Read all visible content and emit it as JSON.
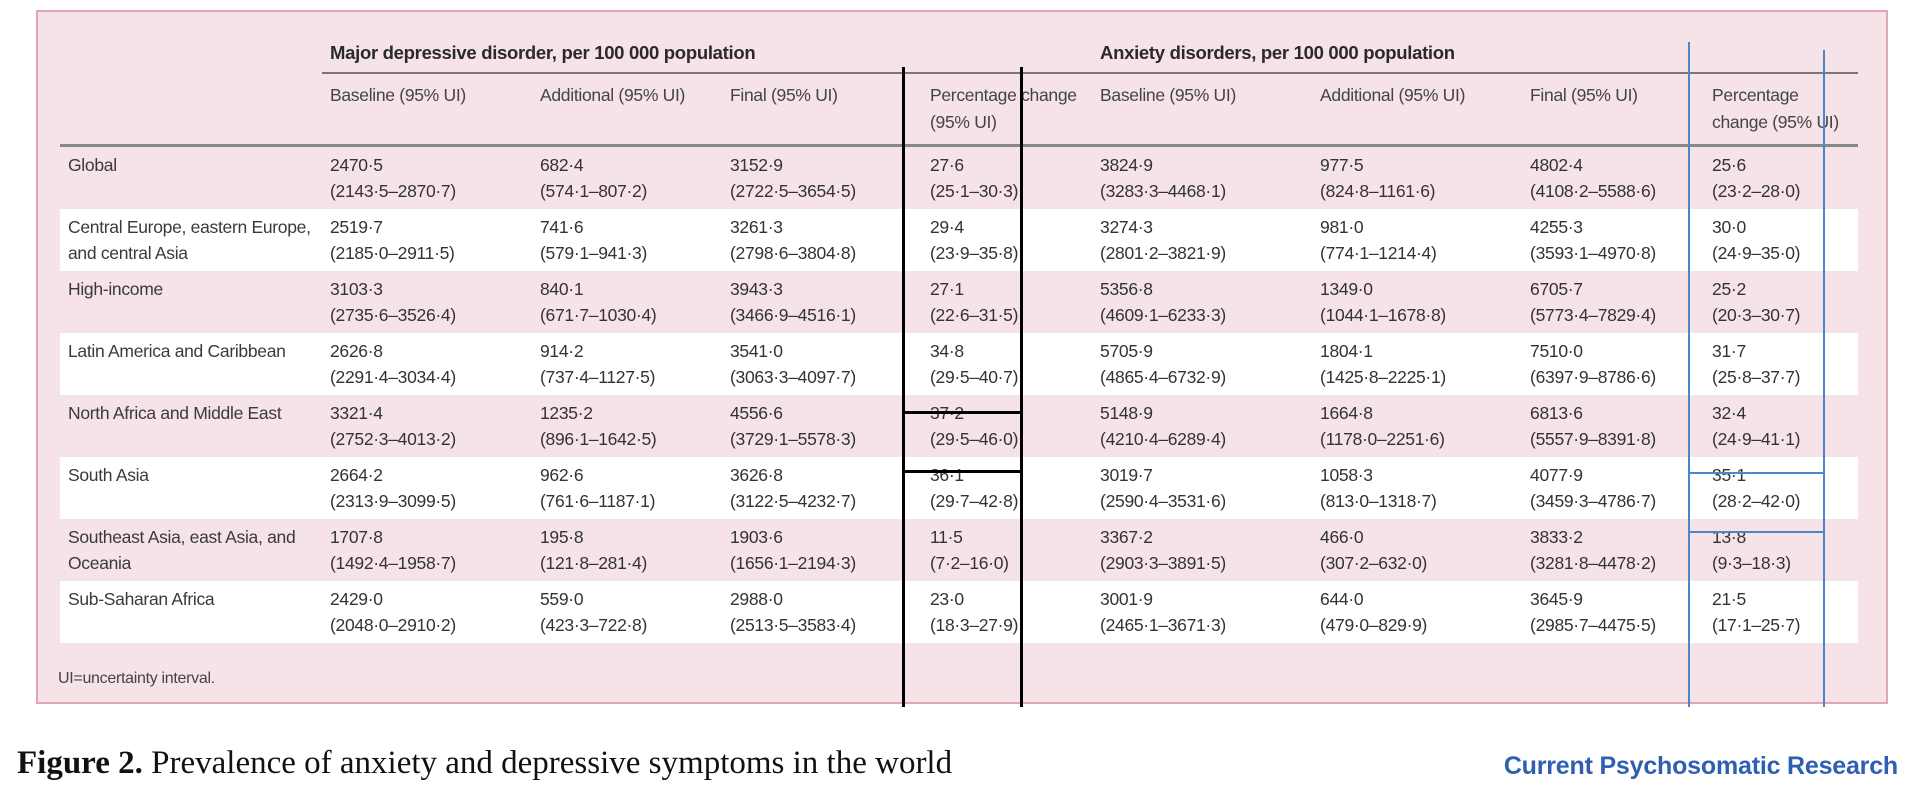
{
  "table": {
    "group_headers": {
      "mdd": "Major depressive disorder, per 100 000 population",
      "anx": "Anxiety disorders, per 100 000 population"
    },
    "sub_headers": {
      "mdd": [
        "Baseline (95% UI)",
        "Additional (95% UI)",
        "Final (95% UI)",
        "Percentage change (95% UI)"
      ],
      "anx": [
        "Baseline (95% UI)",
        "Additional (95% UI)",
        "Final (95% UI)",
        "Percentage change (95% UI)"
      ]
    },
    "rows": [
      {
        "region": "Global",
        "cells": [
          [
            "2470·5",
            "(2143·5–2870·7)"
          ],
          [
            "682·4",
            "(574·1–807·2)"
          ],
          [
            "3152·9",
            "(2722·5–3654·5)"
          ],
          [
            "27·6",
            "(25·1–30·3)"
          ],
          [
            "3824·9",
            "(3283·3–4468·1)"
          ],
          [
            "977·5",
            "(824·8–1161·6)"
          ],
          [
            "4802·4",
            "(4108·2–5588·6)"
          ],
          [
            "25·6",
            "(23·2–28·0)"
          ]
        ]
      },
      {
        "region": "Central Europe, eastern Europe, and central Asia",
        "cells": [
          [
            "2519·7",
            "(2185·0–2911·5)"
          ],
          [
            "741·6",
            "(579·1–941·3)"
          ],
          [
            "3261·3",
            "(2798·6–3804·8)"
          ],
          [
            "29·4",
            "(23·9–35·8)"
          ],
          [
            "3274·3",
            "(2801·2–3821·9)"
          ],
          [
            "981·0",
            "(774·1–1214·4)"
          ],
          [
            "4255·3",
            "(3593·1–4970·8)"
          ],
          [
            "30·0",
            "(24·9–35·0)"
          ]
        ]
      },
      {
        "region": "High-income",
        "cells": [
          [
            "3103·3",
            "(2735·6–3526·4)"
          ],
          [
            "840·1",
            "(671·7–1030·4)"
          ],
          [
            "3943·3",
            "(3466·9–4516·1)"
          ],
          [
            "27·1",
            "(22·6–31·5)"
          ],
          [
            "5356·8",
            "(4609·1–6233·3)"
          ],
          [
            "1349·0",
            "(1044·1–1678·8)"
          ],
          [
            "6705·7",
            "(5773·4–7829·4)"
          ],
          [
            "25·2",
            "(20·3–30·7)"
          ]
        ]
      },
      {
        "region": "Latin America and Caribbean",
        "cells": [
          [
            "2626·8",
            "(2291·4–3034·4)"
          ],
          [
            "914·2",
            "(737·4–1127·5)"
          ],
          [
            "3541·0",
            "(3063·3–4097·7)"
          ],
          [
            "34·8",
            "(29·5–40·7)"
          ],
          [
            "5705·9",
            "(4865·4–6732·9)"
          ],
          [
            "1804·1",
            "(1425·8–2225·1)"
          ],
          [
            "7510·0",
            "(6397·9–8786·6)"
          ],
          [
            "31·7",
            "(25·8–37·7)"
          ]
        ]
      },
      {
        "region": "North Africa and Middle East",
        "cells": [
          [
            "3321·4",
            "(2752·3–4013·2)"
          ],
          [
            "1235·2",
            "(896·1–1642·5)"
          ],
          [
            "4556·6",
            "(3729·1–5578·3)"
          ],
          [
            "37·2",
            "(29·5–46·0)"
          ],
          [
            "5148·9",
            "(4210·4–6289·4)"
          ],
          [
            "1664·8",
            "(1178·0–2251·6)"
          ],
          [
            "6813·6",
            "(5557·9–8391·8)"
          ],
          [
            "32·4",
            "(24·9–41·1)"
          ]
        ]
      },
      {
        "region": "South Asia",
        "cells": [
          [
            "2664·2",
            "(2313·9–3099·5)"
          ],
          [
            "962·6",
            "(761·6–1187·1)"
          ],
          [
            "3626·8",
            "(3122·5–4232·7)"
          ],
          [
            "36·1",
            "(29·7–42·8)"
          ],
          [
            "3019·7",
            "(2590·4–3531·6)"
          ],
          [
            "1058·3",
            "(813·0–1318·7)"
          ],
          [
            "4077·9",
            "(3459·3–4786·7)"
          ],
          [
            "35·1",
            "(28·2–42·0)"
          ]
        ]
      },
      {
        "region": "Southeast Asia, east Asia, and Oceania",
        "cells": [
          [
            "1707·8",
            "(1492·4–1958·7)"
          ],
          [
            "195·8",
            "(121·8–281·4)"
          ],
          [
            "1903·6",
            "(1656·1–2194·3)"
          ],
          [
            "11·5",
            "(7·2–16·0)"
          ],
          [
            "3367·2",
            "(2903·3–3891·5)"
          ],
          [
            "466·0",
            "(307·2–632·0)"
          ],
          [
            "3833·2",
            "(3281·8–4478·2)"
          ],
          [
            "13·8",
            "(9·3–18·3)"
          ]
        ]
      },
      {
        "region": "Sub-Saharan Africa",
        "cells": [
          [
            "2429·0",
            "(2048·0–2910·2)"
          ],
          [
            "559·0",
            "(423·3–722·8)"
          ],
          [
            "2988·0",
            "(2513·5–3583·4)"
          ],
          [
            "23·0",
            "(18·3–27·9)"
          ],
          [
            "3001·9",
            "(2465·1–3671·3)"
          ],
          [
            "644·0",
            "(479·0–829·9)"
          ],
          [
            "3645·9",
            "(2985·7–4475·5)"
          ],
          [
            "21·5",
            "(17·1–25·7)"
          ]
        ]
      }
    ],
    "footnote": "UI=uncertainty interval."
  },
  "caption": {
    "label": "Figure 2.",
    "text": " Prevalence of anxiety and depressive symptoms in the world"
  },
  "journal": "Current Psychosomatic Research",
  "colors": {
    "panel_bg": "#f5e3e7",
    "annotation_black": "#000000",
    "annotation_blue": "#4a86c8",
    "journal": "#2f5fb0"
  }
}
